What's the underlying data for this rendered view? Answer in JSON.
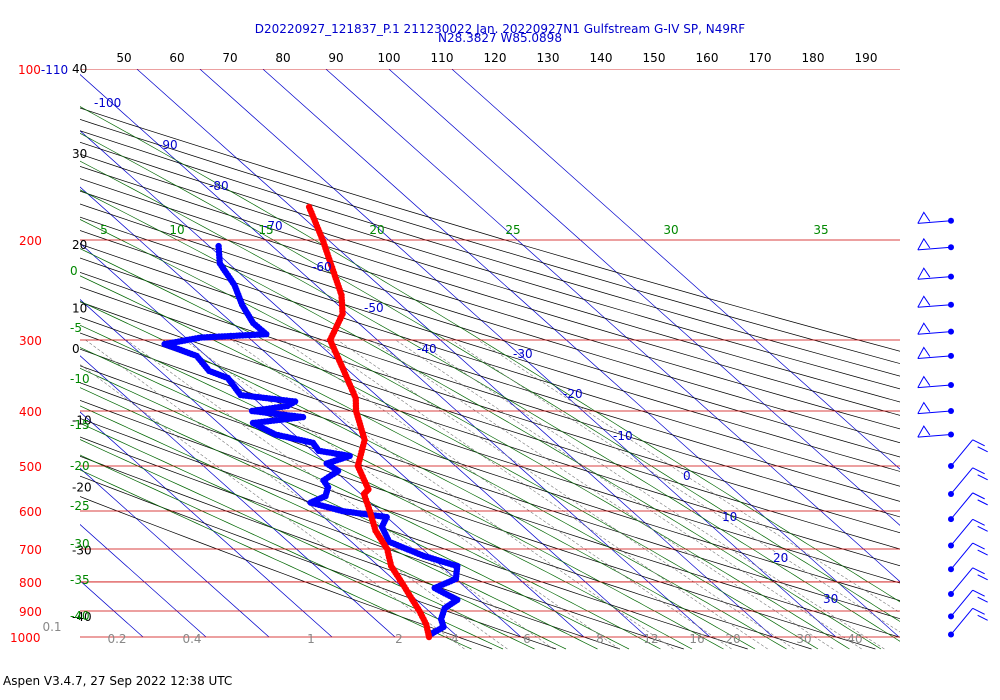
{
  "chart_data": {
    "type": "skew-t",
    "title": "D20220927_121837_P.1 211230022 Jan. 20220927N1 Gulfstream G-IV SP, N49RF",
    "subtitle": "N28.3827 W85.0898",
    "pressure_labels": [
      {
        "p": 100,
        "text": "100-110"
      },
      {
        "p": 200,
        "text": "200"
      },
      {
        "p": 300,
        "text": "300"
      },
      {
        "p": 400,
        "text": "400"
      },
      {
        "p": 500,
        "text": "500"
      },
      {
        "p": 600,
        "text": "600"
      },
      {
        "p": 700,
        "text": "700"
      },
      {
        "p": 800,
        "text": "800"
      },
      {
        "p": 900,
        "text": "900"
      },
      {
        "p": 1000,
        "text": "1000"
      }
    ],
    "top_labels": [
      "50",
      "60",
      "70",
      "80",
      "90",
      "100",
      "110",
      "120",
      "130",
      "140",
      "150",
      "160",
      "170",
      "180",
      "190"
    ],
    "altitude_labels": [
      {
        "p": 100,
        "text": "40"
      },
      {
        "p": 141,
        "text": "30"
      },
      {
        "p": 204,
        "text": "20"
      },
      {
        "p": 264,
        "text": "10"
      },
      {
        "p": 311,
        "text": "0"
      },
      {
        "p": 416,
        "text": "-10"
      },
      {
        "p": 546,
        "text": "-20"
      },
      {
        "p": 704,
        "text": "-30"
      },
      {
        "p": 922,
        "text": "-40"
      }
    ],
    "isotherm_labels": [
      {
        "t": -100,
        "text": "-100"
      },
      {
        "t": -90,
        "text": "-90"
      },
      {
        "t": -80,
        "text": "-80"
      },
      {
        "t": -70,
        "text": "-70"
      },
      {
        "t": -60,
        "text": "-60"
      },
      {
        "t": -50,
        "text": "-50"
      },
      {
        "t": -40,
        "text": "-40"
      },
      {
        "t": -30,
        "text": "-30"
      },
      {
        "t": -20,
        "text": "-20"
      },
      {
        "t": -10,
        "text": "-10"
      },
      {
        "t": 0,
        "text": "0"
      },
      {
        "t": 10,
        "text": "10"
      },
      {
        "t": 20,
        "text": "20"
      },
      {
        "t": 30,
        "text": "30"
      }
    ],
    "moist_labels": [
      {
        "text": "5"
      },
      {
        "text": "10"
      },
      {
        "text": "15"
      },
      {
        "text": "20"
      },
      {
        "text": "25"
      },
      {
        "text": "30"
      },
      {
        "text": "35"
      }
    ],
    "left_green_labels": [
      "0",
      "-5",
      "-10",
      "-15",
      "-20",
      "-25",
      "-30",
      "-35",
      "-40"
    ],
    "mixing_labels": [
      "0.1",
      "0.2",
      "0.4",
      "1",
      "2",
      "4",
      "6",
      "8",
      "12",
      "16",
      "20",
      "30",
      "40"
    ],
    "temperature_profile": [
      [
        175,
        12.8
      ],
      [
        200,
        9.1
      ],
      [
        250,
        2.3
      ],
      [
        270,
        -0.9
      ],
      [
        300,
        -7.5
      ],
      [
        340,
        -10.8
      ],
      [
        380,
        -13.8
      ],
      [
        400,
        -16.0
      ],
      [
        450,
        -19.8
      ],
      [
        500,
        -25.5
      ],
      [
        550,
        -28.0
      ],
      [
        560,
        -29.5
      ],
      [
        600,
        -31.6
      ],
      [
        650,
        -34.2
      ],
      [
        700,
        -35.6
      ],
      [
        750,
        -38.0
      ],
      [
        800,
        -39.2
      ],
      [
        850,
        -40.4
      ],
      [
        900,
        -41.5
      ],
      [
        950,
        -42.8
      ],
      [
        1000,
        -44.6
      ]
    ],
    "dewpoint_profile": [
      [
        205,
        -8.5
      ],
      [
        220,
        -11.4
      ],
      [
        240,
        -12.9
      ],
      [
        260,
        -15.2
      ],
      [
        280,
        -16.7
      ],
      [
        293,
        -16.6
      ],
      [
        297,
        -27.5
      ],
      [
        305,
        -34.5
      ],
      [
        320,
        -31.5
      ],
      [
        340,
        -32.2
      ],
      [
        350,
        -30.5
      ],
      [
        375,
        -31.5
      ],
      [
        385,
        -24.0
      ],
      [
        392,
        -26.0
      ],
      [
        400,
        -32.5
      ],
      [
        410,
        -25.5
      ],
      [
        420,
        -34.5
      ],
      [
        440,
        -33.0
      ],
      [
        455,
        -28.5
      ],
      [
        470,
        -29.0
      ],
      [
        480,
        -25.0
      ],
      [
        495,
        -30.0
      ],
      [
        510,
        -29.5
      ],
      [
        530,
        -33.5
      ],
      [
        545,
        -34.0
      ],
      [
        565,
        -36.0
      ],
      [
        580,
        -39.5
      ],
      [
        600,
        -36.0
      ],
      [
        615,
        -30.0
      ],
      [
        640,
        -32.5
      ],
      [
        680,
        -34.0
      ],
      [
        720,
        -31.0
      ],
      [
        750,
        -27.5
      ],
      [
        790,
        -30.0
      ],
      [
        820,
        -35.0
      ],
      [
        860,
        -33.5
      ],
      [
        890,
        -37.0
      ],
      [
        930,
        -39.5
      ],
      [
        960,
        -40.5
      ],
      [
        990,
        -44.0
      ]
    ],
    "wind_pressures": [
      185,
      206,
      232,
      260,
      290,
      320,
      360,
      400,
      440,
      500,
      560,
      620,
      690,
      760,
      840,
      920,
      990
    ],
    "xlabel": "",
    "ylabel": "",
    "colors": {
      "temperature": "#ff0000",
      "dewpoint": "#0000ff",
      "isobar": "#cc0000",
      "isotherm": "#0000cc",
      "dry_adiabat": "#000000",
      "moist_adiabat": "#006600",
      "mixing_ratio": "#777777",
      "label_blue": "#0000cc",
      "label_green": "#008800",
      "label_red": "#ff0000",
      "label_gray": "#888888"
    }
  },
  "footer": "Aspen V3.4.7, 27 Sep 2022  12:38 UTC"
}
